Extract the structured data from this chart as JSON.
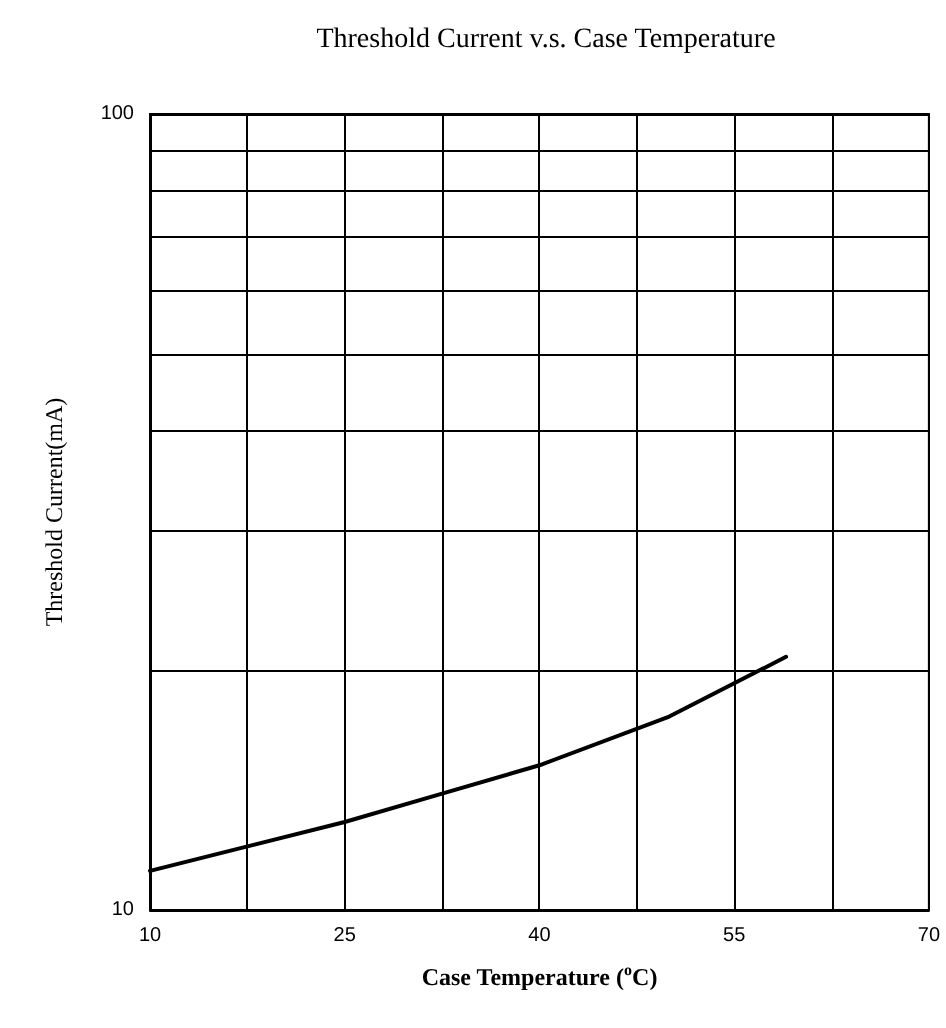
{
  "chart_data": {
    "type": "line",
    "title": "Threshold Current v.s. Case Temperature",
    "xlabel": "Case Temperature ($^{o}$C)",
    "ylabel": "Threshold Current(mA)",
    "x": [
      10,
      25,
      32.5,
      40,
      50,
      59
    ],
    "series": [
      {
        "color": "#000000",
        "values": [
          11.2,
          12.9,
          14.0,
          15.2,
          17.5,
          20.8
        ]
      }
    ],
    "xlim": [
      10,
      70
    ],
    "xticks": [
      10,
      {
        "value": 17.5,
        "label": null
      },
      25,
      {
        "value": 32.5,
        "label": null
      },
      40,
      {
        "value": 47.5,
        "label": null
      },
      55,
      {
        "value": 62.5,
        "label": null
      },
      70
    ],
    "ylim": [
      10,
      100
    ],
    "yticks": [
      10,
      {
        "value": 20,
        "label": null
      },
      {
        "value": 30,
        "label": null
      },
      {
        "value": 40,
        "label": null
      },
      {
        "value": 50,
        "label": null
      },
      {
        "value": 60,
        "label": null
      },
      {
        "value": 70,
        "label": null
      },
      {
        "value": 80,
        "label": null
      },
      {
        "value": 90,
        "label": null
      },
      100
    ],
    "log": "y",
    "grid": true,
    "marker": "none",
    "line_style": "solid"
  }
}
